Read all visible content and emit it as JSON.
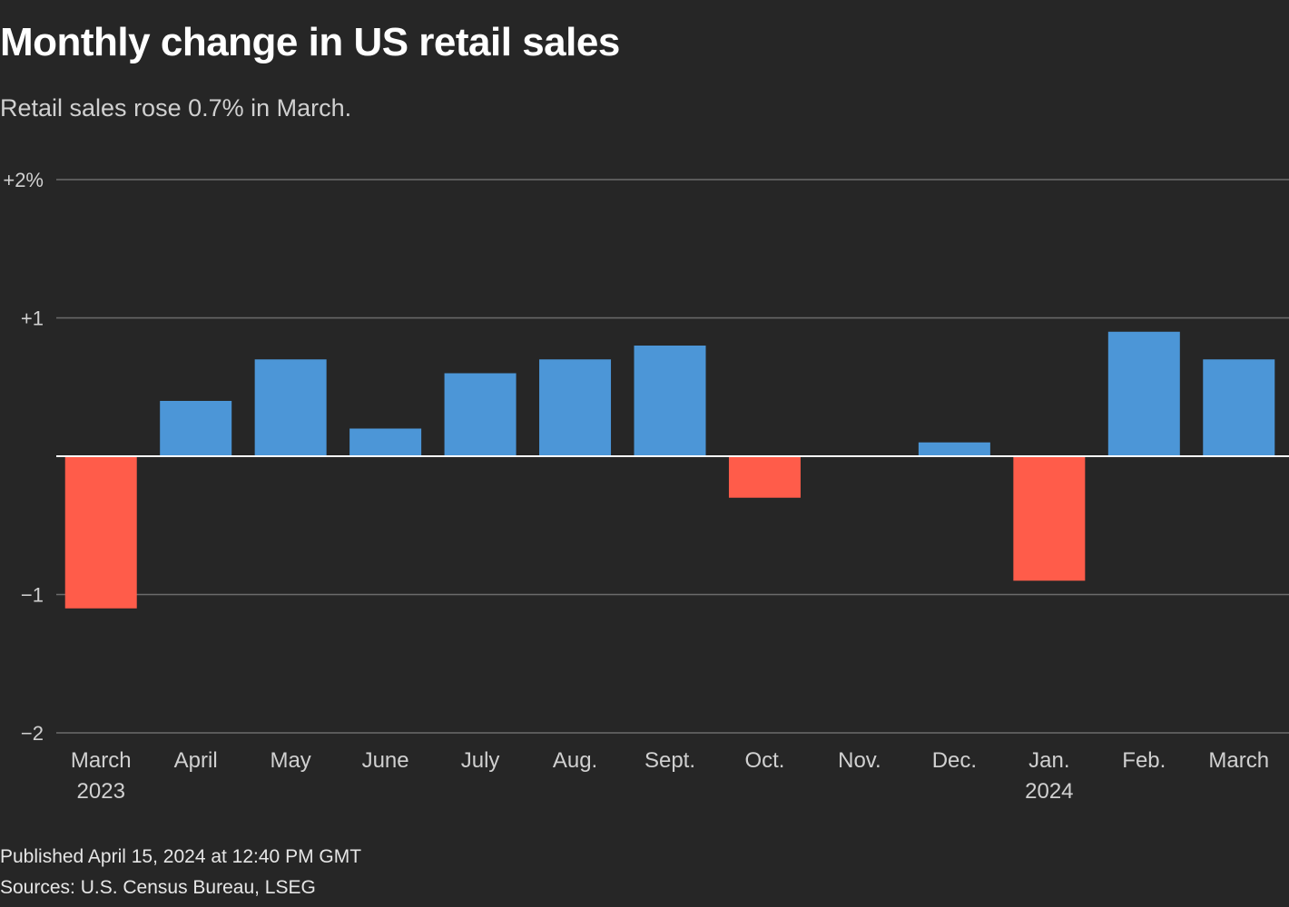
{
  "title": "Monthly change in US retail sales",
  "subtitle": "Retail sales rose 0.7% in March.",
  "footer": {
    "published": "Published April 15, 2024 at 12:40 PM GMT",
    "sources": "Sources: U.S. Census Bureau, LSEG"
  },
  "colors": {
    "positive": "#4c96d7",
    "negative": "#ff5c4a",
    "background": "#262626",
    "grid": "#6b6b6b",
    "zero_line": "#ffffff",
    "tick_text": "#d0d0d0"
  },
  "chart_data": {
    "type": "bar",
    "title": "Monthly change in US retail sales",
    "subtitle": "Retail sales rose 0.7% in March.",
    "xlabel": "",
    "ylabel": "",
    "ylim": [
      -2,
      2
    ],
    "grid": true,
    "yticks": [
      {
        "value": 2,
        "label": "+2%"
      },
      {
        "value": 1,
        "label": "+1"
      },
      {
        "value": -1,
        "label": "−1"
      },
      {
        "value": -2,
        "label": "−2"
      }
    ],
    "categories": [
      {
        "label": "March",
        "sublabel": "2023"
      },
      {
        "label": "April",
        "sublabel": ""
      },
      {
        "label": "May",
        "sublabel": ""
      },
      {
        "label": "June",
        "sublabel": ""
      },
      {
        "label": "July",
        "sublabel": ""
      },
      {
        "label": "Aug.",
        "sublabel": ""
      },
      {
        "label": "Sept.",
        "sublabel": ""
      },
      {
        "label": "Oct.",
        "sublabel": ""
      },
      {
        "label": "Nov.",
        "sublabel": ""
      },
      {
        "label": "Dec.",
        "sublabel": ""
      },
      {
        "label": "Jan.",
        "sublabel": "2024"
      },
      {
        "label": "Feb.",
        "sublabel": ""
      },
      {
        "label": "March",
        "sublabel": ""
      }
    ],
    "values": [
      -1.1,
      0.4,
      0.7,
      0.2,
      0.6,
      0.7,
      0.8,
      -0.3,
      0.0,
      0.1,
      -0.9,
      0.9,
      0.7
    ]
  }
}
